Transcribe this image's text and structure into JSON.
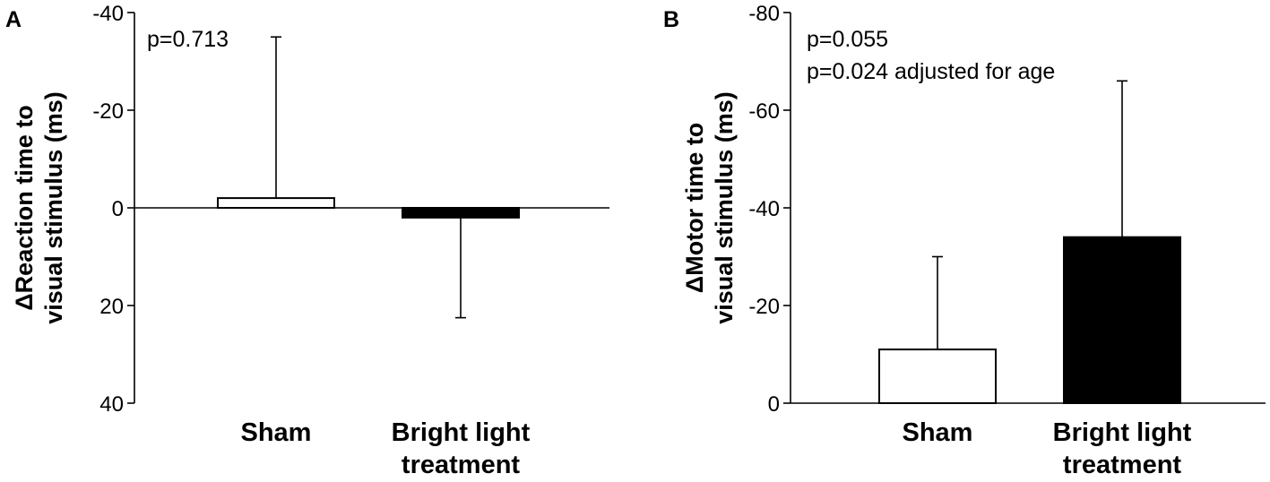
{
  "chart_data": [
    {
      "panel": "A",
      "type": "bar",
      "ylabel": [
        "ΔReaction time to",
        "visual stimulus (ms)"
      ],
      "ylim": [
        40,
        -40
      ],
      "yticks": [
        -40,
        -20,
        0,
        20,
        40
      ],
      "y_inverted": true,
      "annotations": [
        "p=0.713"
      ],
      "categories": [
        [
          "Sham"
        ],
        [
          "Bright light",
          "treatment"
        ]
      ],
      "values": [
        -2,
        2
      ],
      "error_bars": [
        33,
        20.5
      ],
      "bar_colors": [
        "#ffffff",
        "#000000"
      ],
      "grid": false,
      "legend": "none"
    },
    {
      "panel": "B",
      "type": "bar",
      "ylabel": [
        "ΔMotor time to",
        "visual stimulus (ms)"
      ],
      "ylim": [
        0,
        -80
      ],
      "yticks": [
        -80,
        -60,
        -40,
        -20,
        0
      ],
      "y_inverted": true,
      "annotations": [
        "p=0.055",
        "p=0.024 adjusted for age"
      ],
      "categories": [
        [
          "Sham"
        ],
        [
          "Bright light",
          "treatment"
        ]
      ],
      "values": [
        -11,
        -34
      ],
      "error_bars": [
        19,
        32
      ],
      "bar_colors": [
        "#ffffff",
        "#000000"
      ],
      "grid": false,
      "legend": "none"
    }
  ]
}
